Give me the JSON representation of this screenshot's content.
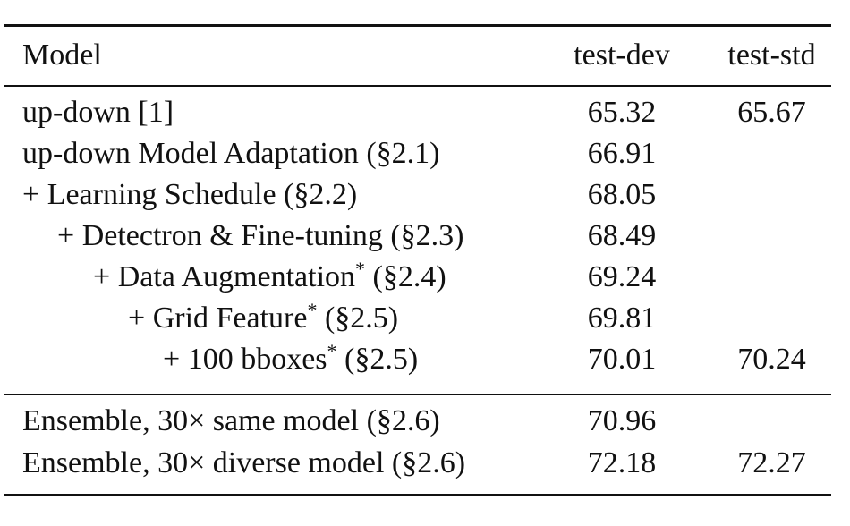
{
  "table": {
    "headers": {
      "model": "Model",
      "test_dev": "test-dev",
      "test_std": "test-std"
    },
    "rows": [
      {
        "prefix": "",
        "model": "up-down [1]",
        "star": "",
        "suffix": "",
        "test_dev": "65.32",
        "test_std": "65.67"
      },
      {
        "prefix": "",
        "model": "up-down Model Adaptation (§2.1)",
        "star": "",
        "suffix": "",
        "test_dev": "66.91",
        "test_std": ""
      },
      {
        "prefix": "+ ",
        "model": "Learning Schedule (§2.2)",
        "star": "",
        "suffix": "",
        "test_dev": "68.05",
        "test_std": ""
      },
      {
        "prefix": "+ ",
        "model": "Detectron & Fine-tuning (§2.3)",
        "star": "",
        "suffix": "",
        "test_dev": "68.49",
        "test_std": ""
      },
      {
        "prefix": "+ ",
        "model": "Data Augmentation",
        "star": "*",
        "suffix": " (§2.4)",
        "test_dev": "69.24",
        "test_std": ""
      },
      {
        "prefix": "+ ",
        "model": "Grid Feature",
        "star": "*",
        "suffix": " (§2.5)",
        "test_dev": "69.81",
        "test_std": ""
      },
      {
        "prefix": "+ ",
        "model": "100 bboxes",
        "star": "*",
        "suffix": " (§2.5)",
        "test_dev": "70.01",
        "test_std": "70.24"
      }
    ],
    "ensemble_rows": [
      {
        "model": "Ensemble, 30× same model (§2.6)",
        "test_dev": "70.96",
        "test_std": ""
      },
      {
        "model": "Ensemble, 30× diverse model (§2.6)",
        "test_dev": "72.18",
        "test_std": "72.27"
      }
    ]
  }
}
